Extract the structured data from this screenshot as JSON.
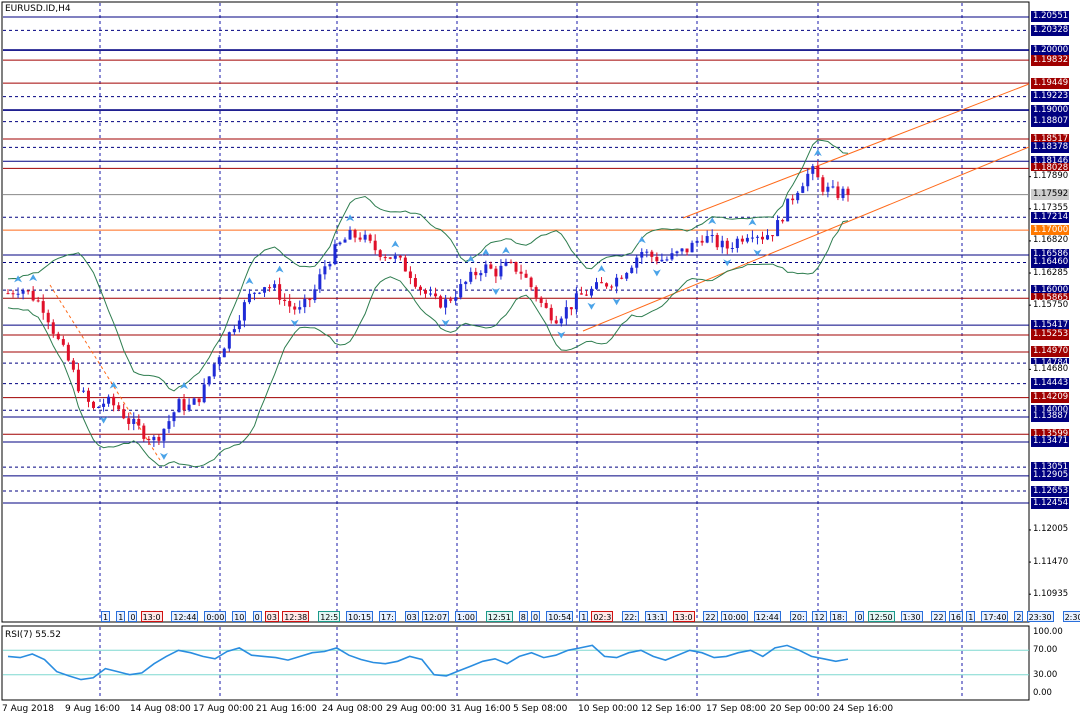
{
  "window": {
    "title": "EURUSD.ID,H4"
  },
  "rsi": {
    "title": "RSI(7) 55.52",
    "levels": [
      "100.00",
      "70.00",
      "30.00",
      "0.00"
    ]
  },
  "price_axis": {
    "levels": [
      {
        "value": "1.20551",
        "style": "navy"
      },
      {
        "value": "1.20328",
        "style": "navy"
      },
      {
        "value": "1.20000",
        "style": "navy"
      },
      {
        "value": "1.19832",
        "style": "red"
      },
      {
        "value": "1.19449",
        "style": "red"
      },
      {
        "value": "1.19223",
        "style": "navy"
      },
      {
        "value": "1.19000",
        "style": "navy"
      },
      {
        "value": "1.18807",
        "style": "navy"
      },
      {
        "value": "1.18517",
        "style": "red"
      },
      {
        "value": "1.18378",
        "style": "navy"
      },
      {
        "value": "1.18146",
        "style": "navy"
      },
      {
        "value": "1.18028",
        "style": "red"
      },
      {
        "value": "1.17890",
        "style": "plain"
      },
      {
        "value": "1.17592",
        "style": "gray"
      },
      {
        "value": "1.17355",
        "style": "plain"
      },
      {
        "value": "1.17214",
        "style": "navy"
      },
      {
        "value": "1.17000",
        "style": "orange"
      },
      {
        "value": "1.16820",
        "style": "plain"
      },
      {
        "value": "1.16586",
        "style": "navy"
      },
      {
        "value": "1.16460",
        "style": "navy"
      },
      {
        "value": "1.16285",
        "style": "plain"
      },
      {
        "value": "1.16000",
        "style": "navy"
      },
      {
        "value": "1.15865",
        "style": "red"
      },
      {
        "value": "1.15750",
        "style": "plain"
      },
      {
        "value": "1.15417",
        "style": "navy"
      },
      {
        "value": "1.15253",
        "style": "red"
      },
      {
        "value": "1.14970",
        "style": "red"
      },
      {
        "value": "1.14784",
        "style": "navy"
      },
      {
        "value": "1.14680",
        "style": "plain"
      },
      {
        "value": "1.14443",
        "style": "navy"
      },
      {
        "value": "1.14209",
        "style": "red"
      },
      {
        "value": "1.14000",
        "style": "navy"
      },
      {
        "value": "1.13887",
        "style": "navy"
      },
      {
        "value": "1.13599",
        "style": "red"
      },
      {
        "value": "1.13471",
        "style": "navy"
      },
      {
        "value": "1.13051",
        "style": "navy"
      },
      {
        "value": "1.12905",
        "style": "navy"
      },
      {
        "value": "1.12653",
        "style": "navy"
      },
      {
        "value": "1.12454",
        "style": "navy"
      },
      {
        "value": "1.12005",
        "style": "plain"
      },
      {
        "value": "1.11470",
        "style": "plain"
      },
      {
        "value": "1.10935",
        "style": "plain"
      }
    ]
  },
  "time_axis": {
    "labels": [
      "7 Aug 2018",
      "9 Aug 16:00",
      "14 Aug 08:00",
      "17 Aug 00:00",
      "21 Aug 16:00",
      "24 Aug 08:00",
      "29 Aug 00:00",
      "31 Aug 16:00",
      "5 Sep 08:00",
      "10 Sep 00:00",
      "12 Sep 16:00",
      "17 Sep 08:00",
      "20 Sep 00:00",
      "24 Sep 16:00"
    ]
  },
  "event_tags": [
    {
      "text": "1",
      "style": "blue"
    },
    {
      "text": "1",
      "style": "blue"
    },
    {
      "text": "0",
      "style": "blue"
    },
    {
      "text": "13:0",
      "style": "red"
    },
    {
      "text": "12:44",
      "style": "blue"
    },
    {
      "text": "0:00",
      "style": "blue"
    },
    {
      "text": "10",
      "style": "blue"
    },
    {
      "text": "0",
      "style": "blue"
    },
    {
      "text": "03",
      "style": "red"
    },
    {
      "text": "12:38",
      "style": "red"
    },
    {
      "text": "12:5",
      "style": "teal"
    },
    {
      "text": "10:15",
      "style": "blue"
    },
    {
      "text": "17:",
      "style": "blue"
    },
    {
      "text": "03",
      "style": "blue"
    },
    {
      "text": "12:07",
      "style": "blue"
    },
    {
      "text": "1:00",
      "style": "blue"
    },
    {
      "text": "12:51",
      "style": "teal"
    },
    {
      "text": "8",
      "style": "blue"
    },
    {
      "text": "0",
      "style": "blue"
    },
    {
      "text": "10:54",
      "style": "blue"
    },
    {
      "text": "1",
      "style": "blue"
    },
    {
      "text": "02:3",
      "style": "red"
    },
    {
      "text": "22:",
      "style": "blue"
    },
    {
      "text": "13:1",
      "style": "blue"
    },
    {
      "text": "13:0",
      "style": "red"
    },
    {
      "text": "22",
      "style": "blue"
    },
    {
      "text": "10:00",
      "style": "blue"
    },
    {
      "text": "12:44",
      "style": "blue"
    },
    {
      "text": "20:",
      "style": "blue"
    },
    {
      "text": "12",
      "style": "blue"
    },
    {
      "text": "18:",
      "style": "blue"
    },
    {
      "text": "0",
      "style": "blue"
    },
    {
      "text": "12:50",
      "style": "teal"
    },
    {
      "text": "1:30",
      "style": "blue"
    },
    {
      "text": "22",
      "style": "blue"
    },
    {
      "text": "16",
      "style": "blue"
    },
    {
      "text": "1",
      "style": "blue"
    },
    {
      "text": "17:40",
      "style": "blue"
    },
    {
      "text": "2",
      "style": "blue"
    },
    {
      "text": "23:30",
      "style": "blue"
    },
    {
      "text": "2:30",
      "style": "blue"
    }
  ],
  "colors": {
    "bull_candle": "#1f2bd6",
    "bear_candle": "#e0102a",
    "bollinger": "#2e7d4f",
    "rsi_line": "#2a8de0",
    "grid": "#1a1aa8",
    "channel": "#ff6a1a",
    "level_navy": "#000080",
    "level_red": "#a00000",
    "arrow_up": "#4aa3e8"
  },
  "chart_data": {
    "type": "candlestick",
    "symbol": "EURUSD.ID",
    "timeframe": "H4",
    "close_path": [
      1.1595,
      1.1605,
      1.159,
      1.157,
      1.152,
      1.148,
      1.143,
      1.14,
      1.1415,
      1.1405,
      1.138,
      1.1365,
      1.135,
      1.1375,
      1.141,
      1.1405,
      1.143,
      1.148,
      1.152,
      1.156,
      1.1595,
      1.161,
      1.16,
      1.1575,
      1.1565,
      1.159,
      1.164,
      1.167,
      1.169,
      1.169,
      1.167,
      1.166,
      1.165,
      1.163,
      1.16,
      1.158,
      1.158,
      1.16,
      1.162,
      1.164,
      1.163,
      1.164,
      1.1635,
      1.1605,
      1.157,
      1.1555,
      1.157,
      1.159,
      1.16,
      1.161,
      1.162,
      1.164,
      1.1665,
      1.1655,
      1.165,
      1.166,
      1.167,
      1.169,
      1.168,
      1.167,
      1.1685,
      1.17,
      1.169,
      1.17,
      1.174,
      1.1775,
      1.18,
      1.177,
      1.176,
      1.1764
    ],
    "rsi_current": 55.52,
    "rsi_path": [
      60,
      58,
      64,
      55,
      35,
      28,
      22,
      25,
      40,
      35,
      30,
      33,
      48,
      60,
      70,
      66,
      60,
      56,
      68,
      74,
      62,
      60,
      58,
      54,
      60,
      66,
      68,
      74,
      62,
      55,
      50,
      48,
      52,
      60,
      55,
      30,
      28,
      36,
      44,
      52,
      56,
      48,
      60,
      66,
      58,
      62,
      70,
      74,
      78,
      60,
      58,
      66,
      70,
      60,
      54,
      62,
      70,
      66,
      58,
      60,
      66,
      70,
      60,
      74,
      78,
      70,
      60,
      56,
      52,
      55.52
    ],
    "rsi_ylim": [
      0,
      100
    ],
    "rsi_levels": [
      70,
      30
    ]
  }
}
